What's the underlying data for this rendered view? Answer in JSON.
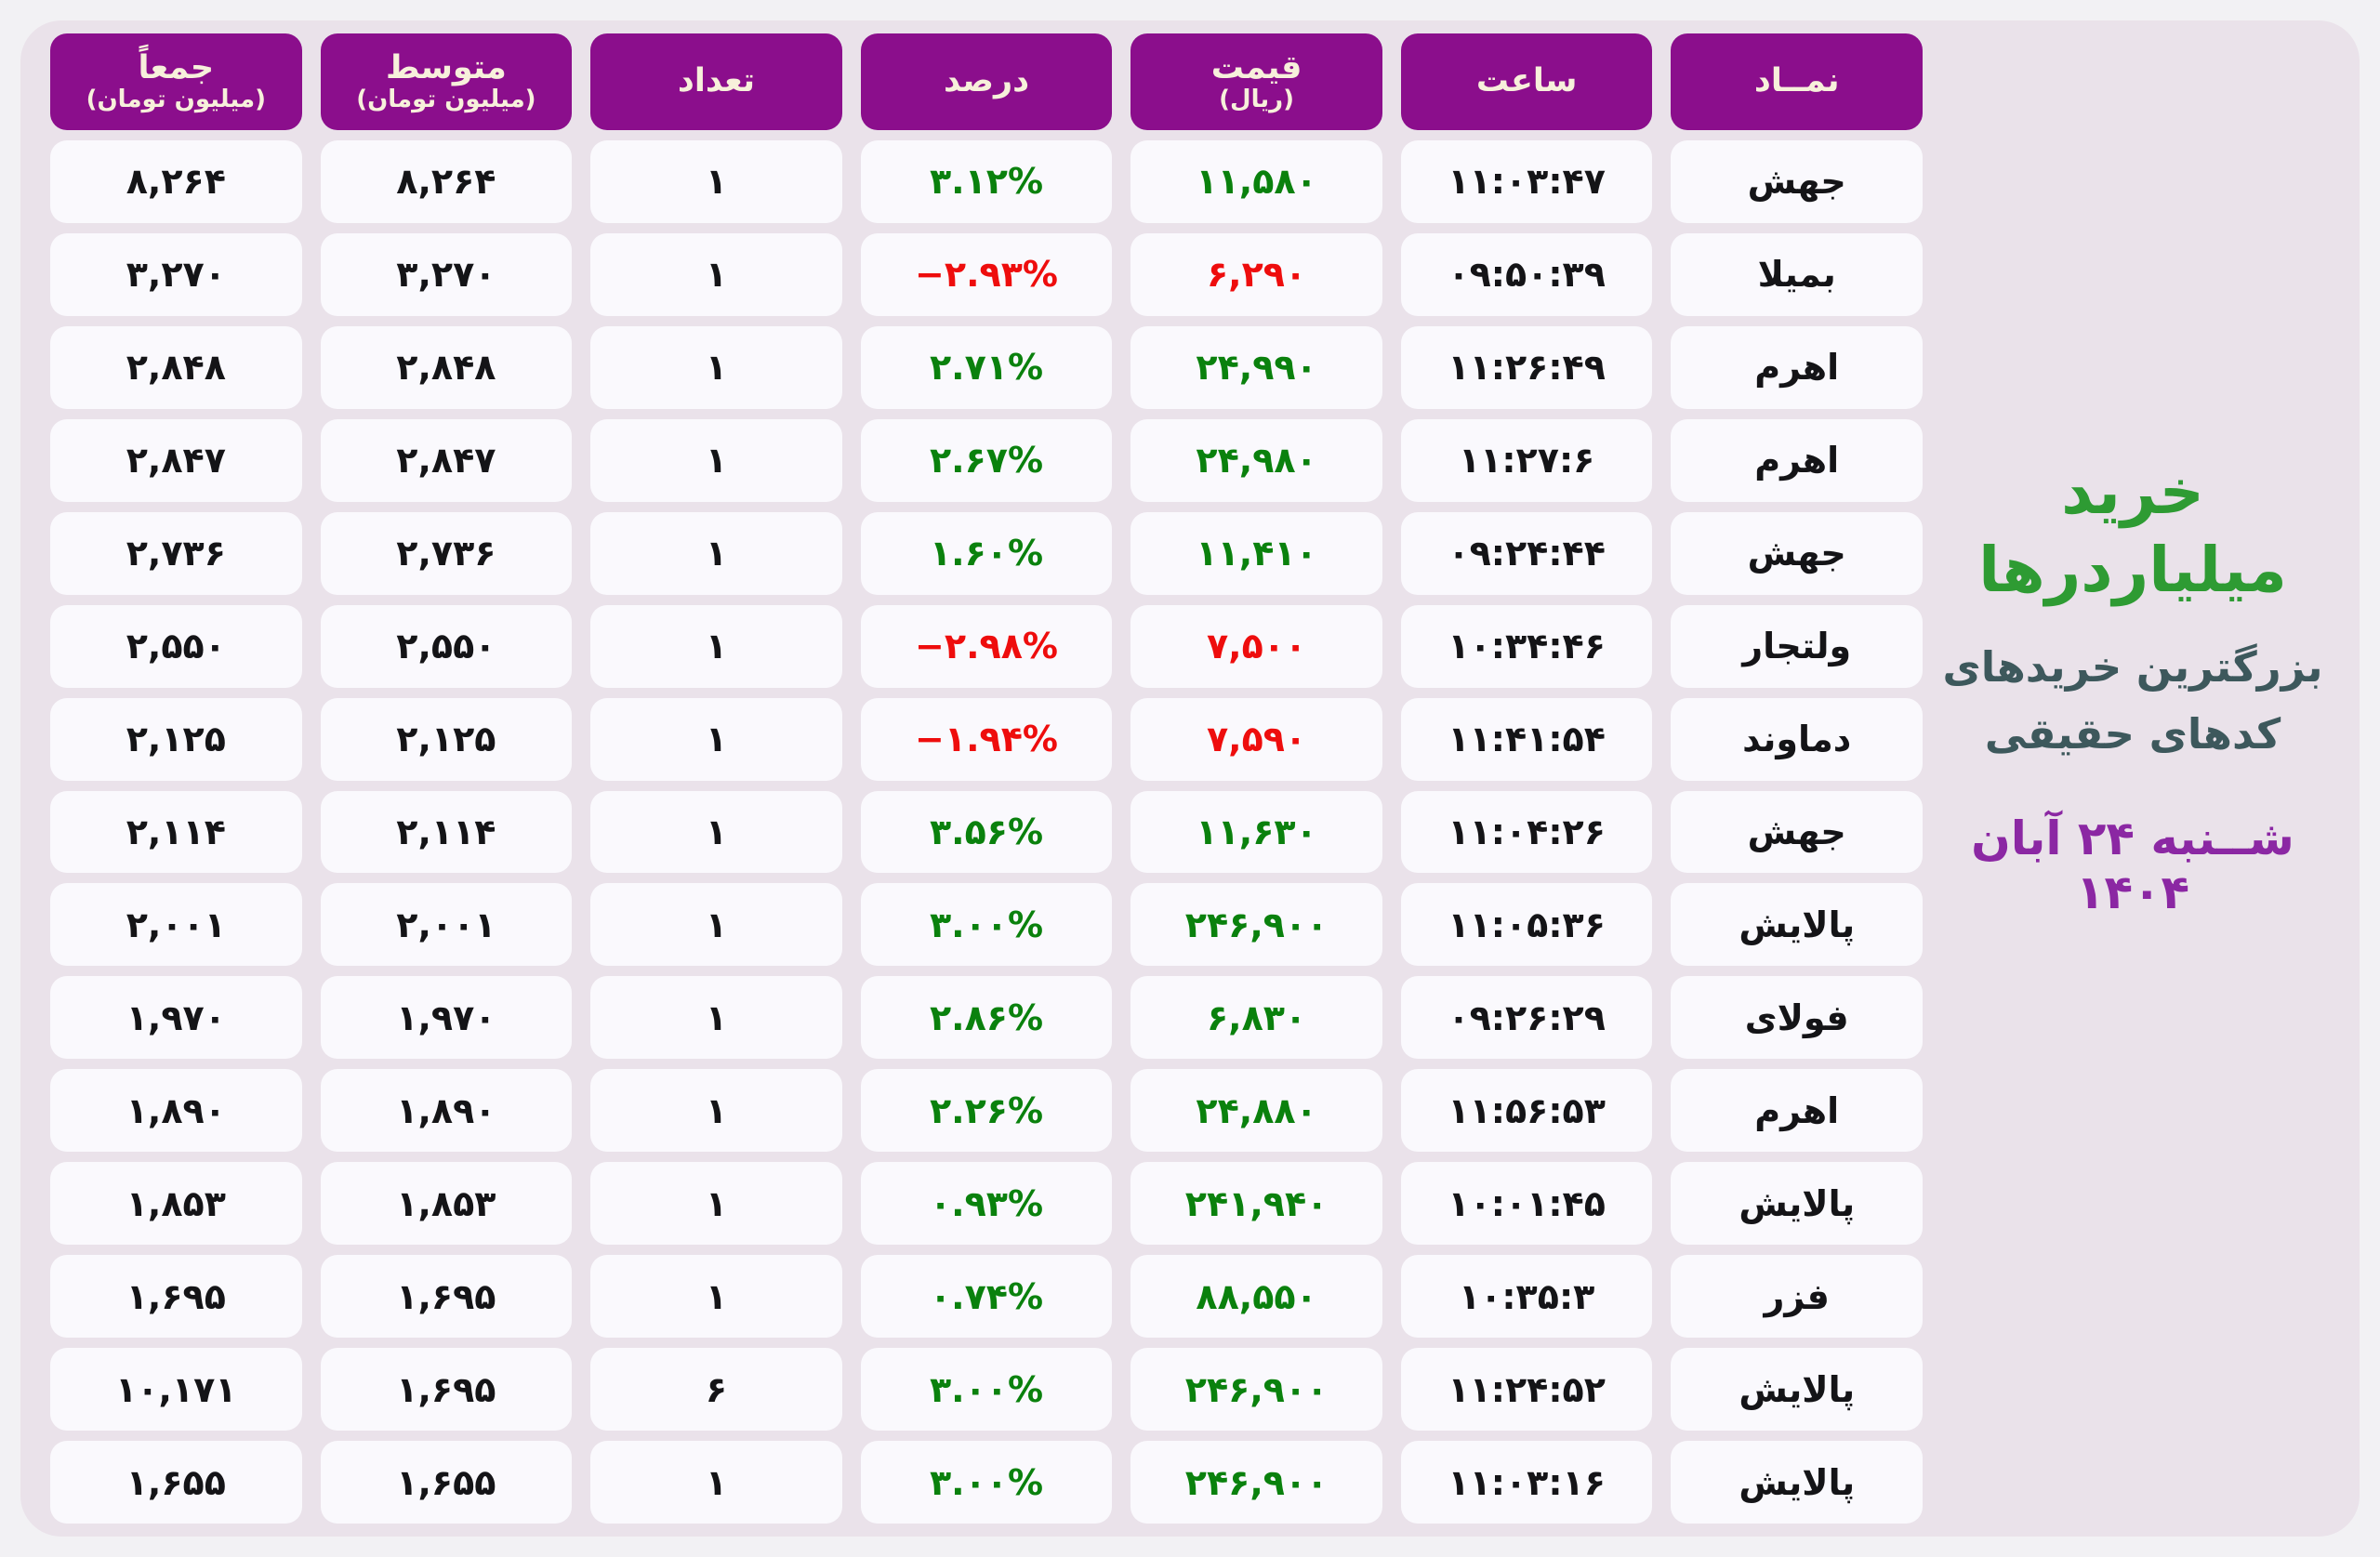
{
  "page": {
    "title": "خرید میلیاردرها",
    "subtitle_line1": "بزرگترین خریدهای",
    "subtitle_line2": "کدهای حقیقی",
    "date": "شــنبه ۲۴ آبان ۱۴۰۴"
  },
  "colors": {
    "page_bg": "#F2F1F4",
    "card_bg": "#EAE2EA",
    "cell_bg": "#FAF9FD",
    "header_bg": "#8B0E8C",
    "header_text": "#F7F0DB",
    "text_dark": "#141417",
    "green": "#0A810D",
    "red": "#EE0D0D",
    "title_green": "#2E9B33",
    "subtitle_slate": "#3D585C",
    "date_purple": "#8B27A3"
  },
  "table": {
    "columns": [
      {
        "key": "symbol",
        "label": "نمــاد",
        "sub": ""
      },
      {
        "key": "time",
        "label": "ساعت",
        "sub": ""
      },
      {
        "key": "price",
        "label": "قیمت",
        "sub": "(ریال)"
      },
      {
        "key": "percent",
        "label": "درصد",
        "sub": ""
      },
      {
        "key": "count",
        "label": "تعداد",
        "sub": ""
      },
      {
        "key": "average",
        "label": "متوسط",
        "sub": "(میلیون تومان)"
      },
      {
        "key": "total",
        "label": "جمعاً",
        "sub": "(میلیون تومان)"
      }
    ],
    "rows": [
      {
        "symbol": "جهش",
        "time": "۱۱:۰۳:۴۷",
        "price": "۱۱,۵۸۰",
        "price_color": "green",
        "percent": "۳.۱۲%",
        "percent_color": "green",
        "count": "۱",
        "average": "۸,۲۶۴",
        "total": "۸,۲۶۴"
      },
      {
        "symbol": "بمیلا",
        "time": "۰۹:۵۰:۳۹",
        "price": "۶,۲۹۰",
        "price_color": "red",
        "percent": "−۲.۹۳%",
        "percent_color": "red",
        "count": "۱",
        "average": "۳,۲۷۰",
        "total": "۳,۲۷۰"
      },
      {
        "symbol": "اهرم",
        "time": "۱۱:۲۶:۴۹",
        "price": "۲۴,۹۹۰",
        "price_color": "green",
        "percent": "۲.۷۱%",
        "percent_color": "green",
        "count": "۱",
        "average": "۲,۸۴۸",
        "total": "۲,۸۴۸"
      },
      {
        "symbol": "اهرم",
        "time": "۱۱:۲۷:۶",
        "price": "۲۴,۹۸۰",
        "price_color": "green",
        "percent": "۲.۶۷%",
        "percent_color": "green",
        "count": "۱",
        "average": "۲,۸۴۷",
        "total": "۲,۸۴۷"
      },
      {
        "symbol": "جهش",
        "time": "۰۹:۲۴:۴۴",
        "price": "۱۱,۴۱۰",
        "price_color": "green",
        "percent": "۱.۶۰%",
        "percent_color": "green",
        "count": "۱",
        "average": "۲,۷۳۶",
        "total": "۲,۷۳۶"
      },
      {
        "symbol": "ولتجار",
        "time": "۱۰:۳۴:۴۶",
        "price": "۷,۵۰۰",
        "price_color": "red",
        "percent": "−۲.۹۸%",
        "percent_color": "red",
        "count": "۱",
        "average": "۲,۵۵۰",
        "total": "۲,۵۵۰"
      },
      {
        "symbol": "دماوند",
        "time": "۱۱:۴۱:۵۴",
        "price": "۷,۵۹۰",
        "price_color": "red",
        "percent": "−۱.۹۴%",
        "percent_color": "red",
        "count": "۱",
        "average": "۲,۱۲۵",
        "total": "۲,۱۲۵"
      },
      {
        "symbol": "جهش",
        "time": "۱۱:۰۴:۲۶",
        "price": "۱۱,۶۳۰",
        "price_color": "green",
        "percent": "۳.۵۶%",
        "percent_color": "green",
        "count": "۱",
        "average": "۲,۱۱۴",
        "total": "۲,۱۱۴"
      },
      {
        "symbol": "پالایش",
        "time": "۱۱:۰۵:۳۶",
        "price": "۲۴۶,۹۰۰",
        "price_color": "green",
        "percent": "۳.۰۰%",
        "percent_color": "green",
        "count": "۱",
        "average": "۲,۰۰۱",
        "total": "۲,۰۰۱"
      },
      {
        "symbol": "فولای",
        "time": "۰۹:۲۶:۲۹",
        "price": "۶,۸۳۰",
        "price_color": "green",
        "percent": "۲.۸۶%",
        "percent_color": "green",
        "count": "۱",
        "average": "۱,۹۷۰",
        "total": "۱,۹۷۰"
      },
      {
        "symbol": "اهرم",
        "time": "۱۱:۵۶:۵۳",
        "price": "۲۴,۸۸۰",
        "price_color": "green",
        "percent": "۲.۲۶%",
        "percent_color": "green",
        "count": "۱",
        "average": "۱,۸۹۰",
        "total": "۱,۸۹۰"
      },
      {
        "symbol": "پالایش",
        "time": "۱۰:۰۱:۴۵",
        "price": "۲۴۱,۹۴۰",
        "price_color": "green",
        "percent": "۰.۹۳%",
        "percent_color": "green",
        "count": "۱",
        "average": "۱,۸۵۳",
        "total": "۱,۸۵۳"
      },
      {
        "symbol": "فزر",
        "time": "۱۰:۳۵:۳",
        "price": "۸۸,۵۵۰",
        "price_color": "green",
        "percent": "۰.۷۴%",
        "percent_color": "green",
        "count": "۱",
        "average": "۱,۶۹۵",
        "total": "۱,۶۹۵"
      },
      {
        "symbol": "پالایش",
        "time": "۱۱:۲۴:۵۲",
        "price": "۲۴۶,۹۰۰",
        "price_color": "green",
        "percent": "۳.۰۰%",
        "percent_color": "green",
        "count": "۶",
        "average": "۱,۶۹۵",
        "total": "۱۰,۱۷۱"
      },
      {
        "symbol": "پالایش",
        "time": "۱۱:۰۳:۱۶",
        "price": "۲۴۶,۹۰۰",
        "price_color": "green",
        "percent": "۳.۰۰%",
        "percent_color": "green",
        "count": "۱",
        "average": "۱,۶۵۵",
        "total": "۱,۶۵۵"
      }
    ]
  },
  "chart_data": {
    "type": "table",
    "title": "خرید میلیاردرها - بزرگترین خریدهای کدهای حقیقی - شنبه ۲۴ آبان ۱۴۰۴",
    "columns": [
      "نماد",
      "ساعت",
      "قیمت (ریال)",
      "درصد",
      "تعداد",
      "متوسط (میلیون تومان)",
      "جمعاً (میلیون تومان)"
    ],
    "rows": [
      {
        "symbol": "جهش",
        "time": "11:03:47",
        "price_rial": 11580,
        "percent": 3.12,
        "count": 1,
        "avg_mtoman": 8264,
        "total_mtoman": 8264
      },
      {
        "symbol": "بمیلا",
        "time": "09:50:39",
        "price_rial": 6290,
        "percent": -2.93,
        "count": 1,
        "avg_mtoman": 3270,
        "total_mtoman": 3270
      },
      {
        "symbol": "اهرم",
        "time": "11:26:49",
        "price_rial": 24990,
        "percent": 2.71,
        "count": 1,
        "avg_mtoman": 2848,
        "total_mtoman": 2848
      },
      {
        "symbol": "اهرم",
        "time": "11:27:6",
        "price_rial": 24980,
        "percent": 2.67,
        "count": 1,
        "avg_mtoman": 2847,
        "total_mtoman": 2847
      },
      {
        "symbol": "جهش",
        "time": "09:24:44",
        "price_rial": 11410,
        "percent": 1.6,
        "count": 1,
        "avg_mtoman": 2736,
        "total_mtoman": 2736
      },
      {
        "symbol": "ولتجار",
        "time": "10:34:46",
        "price_rial": 7500,
        "percent": -2.98,
        "count": 1,
        "avg_mtoman": 2550,
        "total_mtoman": 2550
      },
      {
        "symbol": "دماوند",
        "time": "11:41:54",
        "price_rial": 7590,
        "percent": -1.94,
        "count": 1,
        "avg_mtoman": 2125,
        "total_mtoman": 2125
      },
      {
        "symbol": "جهش",
        "time": "11:04:26",
        "price_rial": 11630,
        "percent": 3.56,
        "count": 1,
        "avg_mtoman": 2114,
        "total_mtoman": 2114
      },
      {
        "symbol": "پالایش",
        "time": "11:05:36",
        "price_rial": 246900,
        "percent": 3.0,
        "count": 1,
        "avg_mtoman": 2001,
        "total_mtoman": 2001
      },
      {
        "symbol": "فولای",
        "time": "09:26:29",
        "price_rial": 6830,
        "percent": 2.86,
        "count": 1,
        "avg_mtoman": 1970,
        "total_mtoman": 1970
      },
      {
        "symbol": "اهرم",
        "time": "11:56:53",
        "price_rial": 24880,
        "percent": 2.26,
        "count": 1,
        "avg_mtoman": 1890,
        "total_mtoman": 1890
      },
      {
        "symbol": "پالایش",
        "time": "10:01:45",
        "price_rial": 241940,
        "percent": 0.93,
        "count": 1,
        "avg_mtoman": 1853,
        "total_mtoman": 1853
      },
      {
        "symbol": "فزر",
        "time": "10:35:3",
        "price_rial": 88550,
        "percent": 0.74,
        "count": 1,
        "avg_mtoman": 1695,
        "total_mtoman": 1695
      },
      {
        "symbol": "پالایش",
        "time": "11:24:52",
        "price_rial": 246900,
        "percent": 3.0,
        "count": 6,
        "avg_mtoman": 1695,
        "total_mtoman": 10171
      },
      {
        "symbol": "پالایش",
        "time": "11:03:16",
        "price_rial": 246900,
        "percent": 3.0,
        "count": 1,
        "avg_mtoman": 1655,
        "total_mtoman": 1655
      }
    ]
  }
}
